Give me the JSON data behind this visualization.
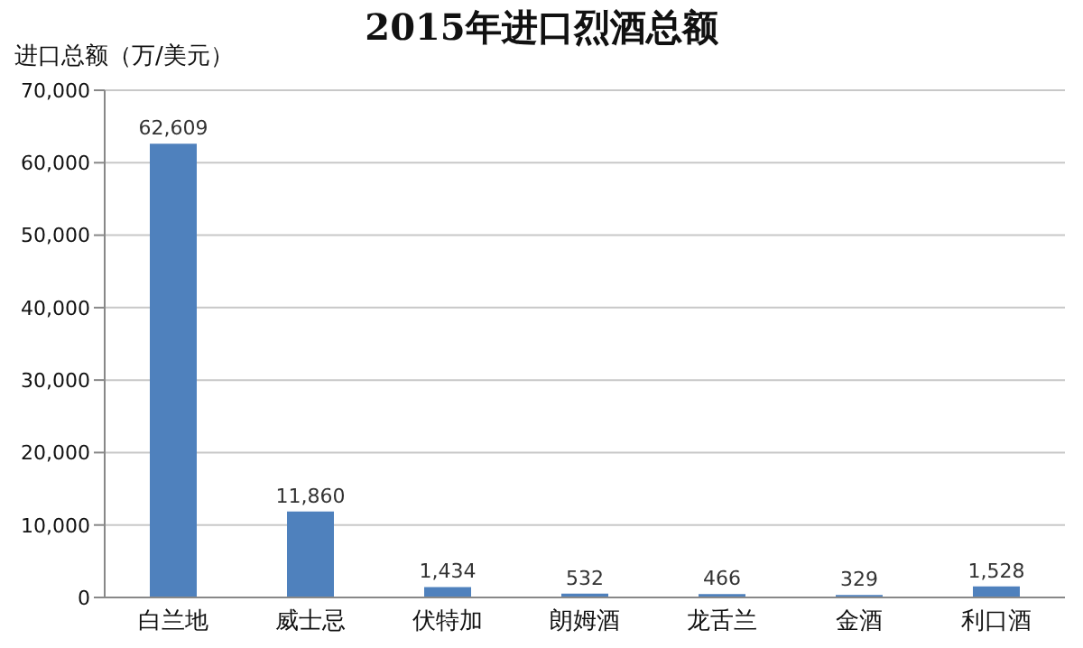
{
  "chart_data": {
    "type": "bar",
    "title": "2015年进口烈酒总额",
    "ylabel": "进口总额（万/美元）",
    "categories": [
      "白兰地",
      "威士忌",
      "伏特加",
      "朗姆酒",
      "龙舌兰",
      "金酒",
      "利口酒"
    ],
    "values": [
      62609,
      11860,
      1434,
      532,
      466,
      329,
      1528
    ],
    "value_labels": [
      "62,609",
      "11,860",
      "1,434",
      "532",
      "466",
      "329",
      "1,528"
    ],
    "color": "#4f81bd",
    "ylim": [
      0,
      70000
    ],
    "yticks": [
      {
        "value": 0,
        "label": "0"
      },
      {
        "value": 10000,
        "label": "10,000"
      },
      {
        "value": 20000,
        "label": "20,000"
      },
      {
        "value": 30000,
        "label": "30,000"
      },
      {
        "value": 40000,
        "label": "40,000"
      },
      {
        "value": 50000,
        "label": "50,000"
      },
      {
        "value": 60000,
        "label": "60,000"
      },
      {
        "value": 70000,
        "label": "70,000"
      }
    ],
    "grid": "y"
  }
}
